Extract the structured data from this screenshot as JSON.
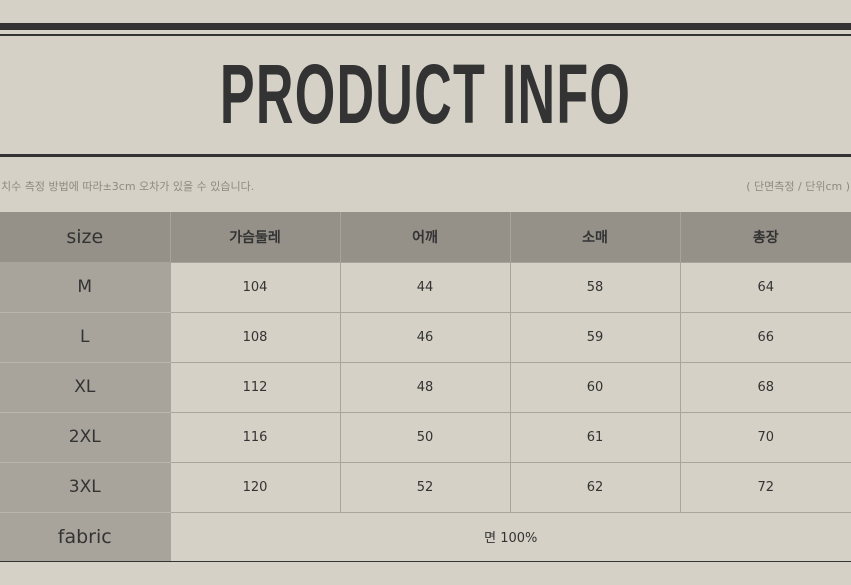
{
  "title": "PRODUCT INFO",
  "note_left": "치수 측정 방법에 따라±3cm 오차가 있을 수 있습니다.",
  "note_right": "( 단면측정 / 단위cm )",
  "headers": [
    "size",
    "가슴둘레",
    "어깨",
    "소매",
    "총장"
  ],
  "rows": [
    [
      "M",
      "104",
      "44",
      "58",
      "64"
    ],
    [
      "L",
      "108",
      "46",
      "59",
      "66"
    ],
    [
      "XL",
      "112",
      "48",
      "60",
      "68"
    ],
    [
      "2XL",
      "116",
      "50",
      "61",
      "70"
    ],
    [
      "3XL",
      "120",
      "52",
      "62",
      "72"
    ]
  ],
  "fabric": {
    "label": "fabric",
    "value": "면 100%"
  }
}
